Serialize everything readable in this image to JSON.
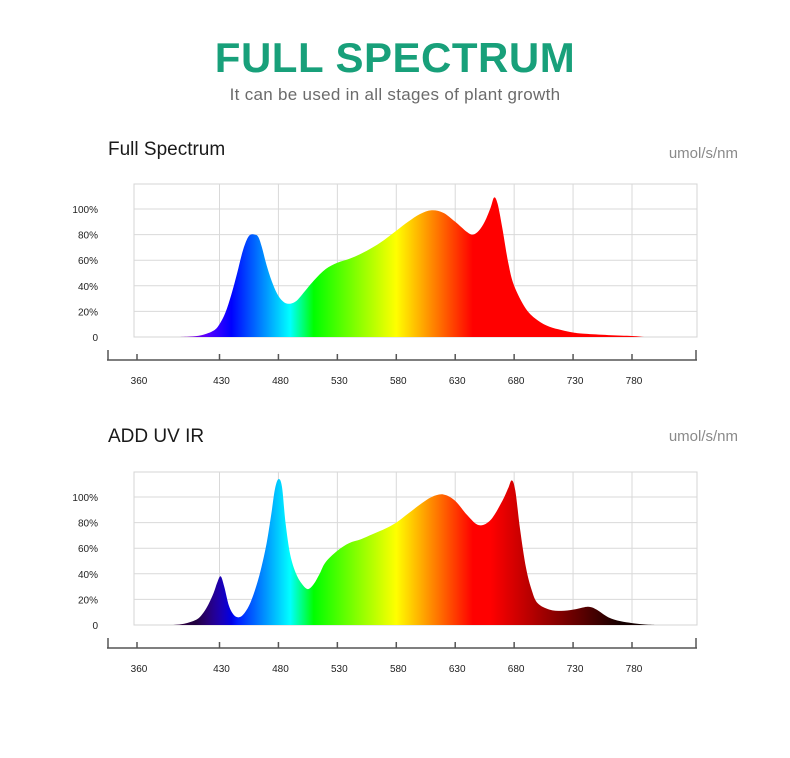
{
  "header": {
    "title": "FULL SPECTRUM",
    "subtitle": "It can be used in all stages of plant growth",
    "title_color": "#18a07a"
  },
  "chart_data": [
    {
      "type": "area",
      "title": "Full Spectrum",
      "unit_label": "umol/s/nm",
      "xlabel": "",
      "ylabel": "",
      "x_ticks": [
        360,
        430,
        480,
        530,
        580,
        630,
        680,
        730,
        780
      ],
      "y_ticks": [
        "0",
        "20%",
        "40%",
        "60%",
        "80%",
        "100%"
      ],
      "xlim": [
        360,
        800
      ],
      "ylim": [
        0,
        100
      ],
      "grid": true,
      "series": [
        {
          "x": [
            395,
            405,
            415,
            425,
            430,
            435,
            440,
            445,
            450,
            455,
            460,
            463,
            466,
            470,
            475,
            480,
            485,
            490,
            495,
            500,
            510,
            520,
            530,
            540,
            550,
            560,
            570,
            580,
            590,
            600,
            610,
            620,
            630,
            640,
            645,
            650,
            655,
            660,
            663,
            666,
            670,
            675,
            680,
            690,
            700,
            710,
            720,
            730,
            740,
            760,
            780,
            790
          ],
          "y": [
            0,
            0.4,
            1.5,
            5,
            10,
            19,
            33,
            50,
            68,
            79,
            80,
            78,
            70,
            56,
            42,
            32,
            27,
            26,
            28,
            33,
            44,
            53,
            58,
            61,
            65,
            70,
            76,
            83,
            90,
            96,
            99,
            97,
            90,
            82,
            80,
            83,
            90,
            101,
            109,
            104,
            85,
            58,
            40,
            22,
            13,
            8,
            5.5,
            3.5,
            2.5,
            1.5,
            0.8,
            0
          ]
        }
      ]
    },
    {
      "type": "area",
      "title": "ADD UV IR",
      "unit_label": "umol/s/nm",
      "xlabel": "",
      "ylabel": "",
      "x_ticks": [
        360,
        430,
        480,
        530,
        580,
        630,
        680,
        730,
        780
      ],
      "y_ticks": [
        "0",
        "20%",
        "40%",
        "60%",
        "80%",
        "100%"
      ],
      "xlim": [
        360,
        800
      ],
      "ylim": [
        0,
        100
      ],
      "grid": true,
      "series": [
        {
          "x": [
            390,
            400,
            410,
            415,
            420,
            425,
            428,
            431,
            434,
            438,
            442,
            446,
            450,
            455,
            460,
            465,
            470,
            474,
            477,
            480,
            483,
            486,
            490,
            495,
            500,
            505,
            510,
            515,
            520,
            530,
            540,
            550,
            560,
            570,
            580,
            590,
            600,
            610,
            620,
            630,
            640,
            650,
            660,
            670,
            675,
            678,
            681,
            685,
            690,
            695,
            700,
            710,
            720,
            730,
            740,
            745,
            750,
            760,
            770,
            780,
            790,
            800
          ],
          "y": [
            0,
            1,
            4,
            8,
            15,
            25,
            33,
            38,
            30,
            15,
            8,
            6,
            8,
            15,
            27,
            43,
            64,
            87,
            106,
            114,
            108,
            80,
            55,
            40,
            32,
            28,
            32,
            40,
            49,
            58,
            64,
            67,
            71,
            75,
            80,
            87,
            94,
            100,
            102,
            97,
            86,
            78,
            82,
            97,
            107,
            113,
            105,
            75,
            45,
            27,
            17,
            12,
            11,
            12,
            14,
            14,
            12,
            6,
            3,
            1.5,
            0.5,
            0
          ]
        }
      ]
    }
  ]
}
